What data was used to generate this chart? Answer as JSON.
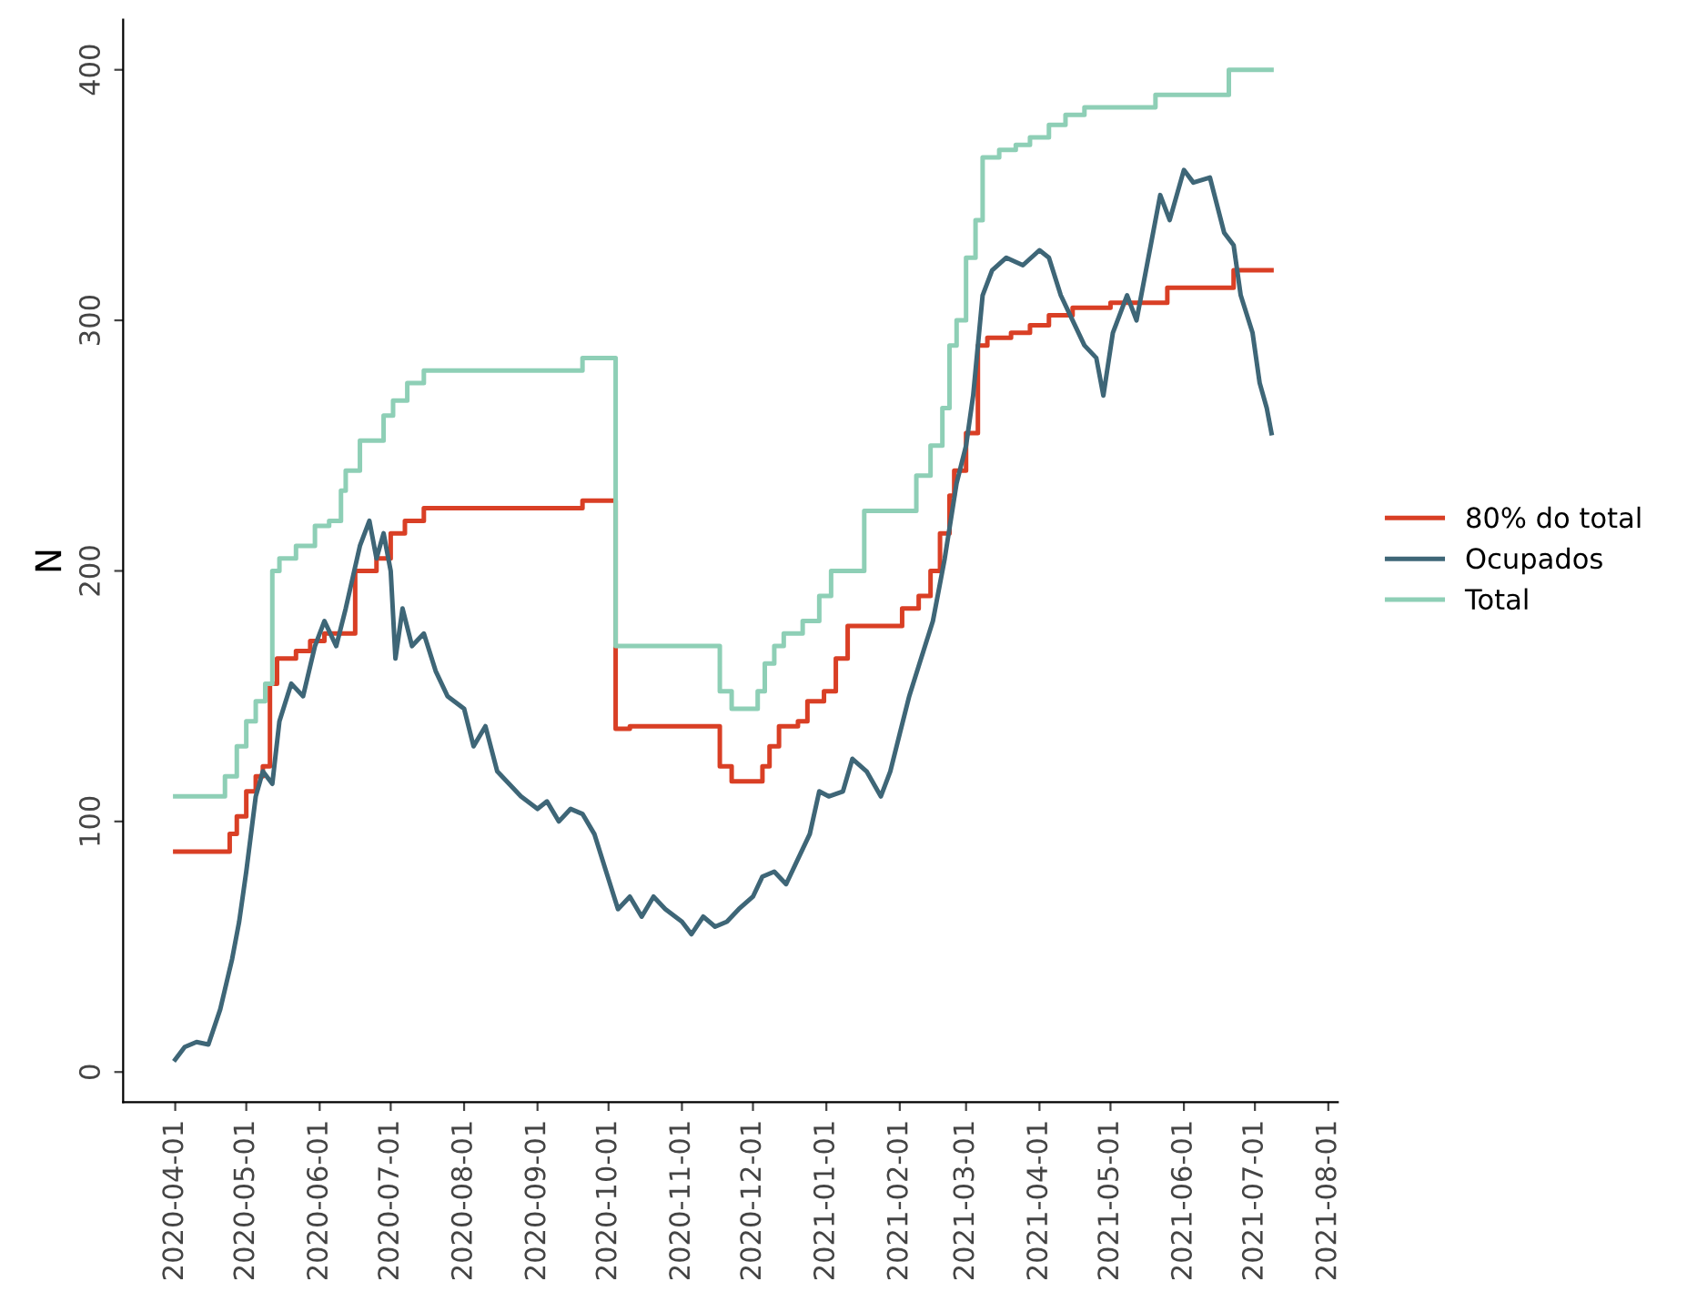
{
  "chart_data": {
    "type": "line",
    "ylabel": "N",
    "legend": "right",
    "grid": false,
    "xlim": [
      "2020-03-10",
      "2021-08-05"
    ],
    "ylim": [
      -12,
      420
    ],
    "xticks": [
      "2020-04-01",
      "2020-05-01",
      "2020-06-01",
      "2020-07-01",
      "2020-08-01",
      "2020-09-01",
      "2020-10-01",
      "2020-11-01",
      "2020-12-01",
      "2021-01-01",
      "2021-02-01",
      "2021-03-01",
      "2021-04-01",
      "2021-05-01",
      "2021-06-01",
      "2021-07-01",
      "2021-08-01"
    ],
    "yticks": [
      0,
      100,
      200,
      300,
      400
    ],
    "series": [
      {
        "name": "80% do total",
        "type": "step",
        "color": "#d93f25",
        "x": [
          "2020-04-01",
          "2020-04-20",
          "2020-04-24",
          "2020-04-27",
          "2020-05-01",
          "2020-05-05",
          "2020-05-08",
          "2020-05-11",
          "2020-05-14",
          "2020-05-22",
          "2020-05-28",
          "2020-06-03",
          "2020-06-16",
          "2020-06-25",
          "2020-07-01",
          "2020-07-07",
          "2020-07-15",
          "2020-09-20",
          "2020-10-04",
          "2020-10-10",
          "2020-11-17",
          "2020-11-22",
          "2020-12-03",
          "2020-12-05",
          "2020-12-08",
          "2020-12-12",
          "2020-12-20",
          "2020-12-24",
          "2020-12-31",
          "2021-01-05",
          "2021-01-10",
          "2021-02-02",
          "2021-02-09",
          "2021-02-14",
          "2021-02-18",
          "2021-02-22",
          "2021-02-24",
          "2021-03-01",
          "2021-03-06",
          "2021-03-10",
          "2021-03-20",
          "2021-03-28",
          "2021-04-05",
          "2021-04-15",
          "2021-05-01",
          "2021-05-25",
          "2021-06-22",
          "2021-07-08"
        ],
        "values": [
          88,
          88,
          95,
          102,
          112,
          118,
          122,
          155,
          165,
          168,
          172,
          175,
          200,
          205,
          215,
          220,
          225,
          228,
          137,
          138,
          122,
          116,
          116,
          122,
          130,
          138,
          140,
          148,
          152,
          165,
          178,
          185,
          190,
          200,
          215,
          230,
          240,
          255,
          290,
          293,
          295,
          298,
          302,
          305,
          307,
          313,
          320,
          320
        ]
      },
      {
        "name": "Ocupados",
        "color": "#3e6677",
        "x": [
          "2020-04-01",
          "2020-04-05",
          "2020-04-10",
          "2020-04-15",
          "2020-04-20",
          "2020-04-25",
          "2020-04-28",
          "2020-05-01",
          "2020-05-05",
          "2020-05-08",
          "2020-05-12",
          "2020-05-15",
          "2020-05-20",
          "2020-05-25",
          "2020-05-30",
          "2020-06-03",
          "2020-06-08",
          "2020-06-12",
          "2020-06-18",
          "2020-06-22",
          "2020-06-25",
          "2020-06-28",
          "2020-07-01",
          "2020-07-03",
          "2020-07-06",
          "2020-07-10",
          "2020-07-15",
          "2020-07-20",
          "2020-07-25",
          "2020-08-01",
          "2020-08-05",
          "2020-08-10",
          "2020-08-15",
          "2020-08-20",
          "2020-08-25",
          "2020-09-01",
          "2020-09-05",
          "2020-09-10",
          "2020-09-15",
          "2020-09-20",
          "2020-09-25",
          "2020-09-30",
          "2020-10-05",
          "2020-10-10",
          "2020-10-15",
          "2020-10-20",
          "2020-10-25",
          "2020-11-01",
          "2020-11-05",
          "2020-11-10",
          "2020-11-15",
          "2020-11-20",
          "2020-11-25",
          "2020-12-01",
          "2020-12-05",
          "2020-12-10",
          "2020-12-15",
          "2020-12-20",
          "2020-12-25",
          "2020-12-29",
          "2021-01-02",
          "2021-01-08",
          "2021-01-12",
          "2021-01-18",
          "2021-01-24",
          "2021-01-28",
          "2021-02-01",
          "2021-02-05",
          "2021-02-10",
          "2021-02-15",
          "2021-02-20",
          "2021-02-25",
          "2021-03-01",
          "2021-03-04",
          "2021-03-08",
          "2021-03-12",
          "2021-03-18",
          "2021-03-25",
          "2021-04-01",
          "2021-04-05",
          "2021-04-10",
          "2021-04-15",
          "2021-04-20",
          "2021-04-25",
          "2021-04-28",
          "2021-05-02",
          "2021-05-08",
          "2021-05-12",
          "2021-05-18",
          "2021-05-22",
          "2021-05-26",
          "2021-06-01",
          "2021-06-05",
          "2021-06-12",
          "2021-06-18",
          "2021-06-22",
          "2021-06-25",
          "2021-06-30",
          "2021-07-03",
          "2021-07-06",
          "2021-07-08"
        ],
        "values": [
          5,
          10,
          12,
          11,
          25,
          45,
          60,
          80,
          110,
          120,
          115,
          140,
          155,
          150,
          170,
          180,
          170,
          185,
          210,
          220,
          205,
          215,
          200,
          165,
          185,
          170,
          175,
          160,
          150,
          145,
          130,
          138,
          120,
          115,
          110,
          105,
          108,
          100,
          105,
          103,
          95,
          80,
          65,
          70,
          62,
          70,
          65,
          60,
          55,
          62,
          58,
          60,
          65,
          70,
          78,
          80,
          75,
          85,
          95,
          112,
          110,
          112,
          125,
          120,
          110,
          120,
          135,
          150,
          165,
          180,
          205,
          235,
          250,
          270,
          310,
          320,
          325,
          322,
          328,
          325,
          310,
          300,
          290,
          285,
          270,
          295,
          310,
          300,
          330,
          350,
          340,
          360,
          355,
          357,
          335,
          330,
          310,
          295,
          275,
          265,
          255
        ]
      },
      {
        "name": "Total",
        "type": "step",
        "color": "#8ecfb6",
        "x": [
          "2020-04-01",
          "2020-04-20",
          "2020-04-22",
          "2020-04-27",
          "2020-05-01",
          "2020-05-05",
          "2020-05-09",
          "2020-05-12",
          "2020-05-15",
          "2020-05-22",
          "2020-05-30",
          "2020-06-05",
          "2020-06-10",
          "2020-06-12",
          "2020-06-18",
          "2020-06-28",
          "2020-07-02",
          "2020-07-08",
          "2020-07-15",
          "2020-09-20",
          "2020-10-04",
          "2020-11-17",
          "2020-11-22",
          "2020-12-03",
          "2020-12-06",
          "2020-12-10",
          "2020-12-14",
          "2020-12-22",
          "2020-12-29",
          "2021-01-03",
          "2021-01-17",
          "2021-02-05",
          "2021-02-08",
          "2021-02-14",
          "2021-02-19",
          "2021-02-22",
          "2021-02-25",
          "2021-03-01",
          "2021-03-05",
          "2021-03-08",
          "2021-03-15",
          "2021-03-22",
          "2021-03-28",
          "2021-04-05",
          "2021-04-12",
          "2021-04-20",
          "2021-05-20",
          "2021-06-20",
          "2021-07-08"
        ],
        "values": [
          110,
          110,
          118,
          130,
          140,
          148,
          155,
          200,
          205,
          210,
          218,
          220,
          232,
          240,
          252,
          262,
          268,
          275,
          280,
          285,
          170,
          152,
          145,
          152,
          163,
          170,
          175,
          180,
          190,
          200,
          224,
          224,
          238,
          250,
          265,
          290,
          300,
          325,
          340,
          365,
          368,
          370,
          373,
          378,
          382,
          385,
          390,
          400,
          400
        ]
      }
    ]
  }
}
